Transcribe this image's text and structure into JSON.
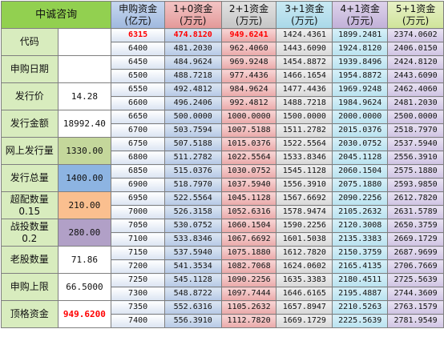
{
  "header": {
    "title": "中诚咨询",
    "col0": "申购资金\n(亿元)",
    "col1": "1+0资金\n(万元)",
    "col2": "2+1资金\n(万元)",
    "col3": "3+1资金\n(万元)",
    "col4": "4+1资金\n(万元)",
    "col5": "5+1资金\n(万元)"
  },
  "labels": [
    {
      "name": "代码",
      "value": ""
    },
    {
      "name": "申购日期",
      "value": ""
    },
    {
      "name": "发行价",
      "value": "14.28"
    },
    {
      "name": "发行金额",
      "value": "18992.40"
    },
    {
      "name": "网上发行量",
      "value": "1330.00"
    },
    {
      "name": "发行总量",
      "value": "1400.00"
    },
    {
      "name": "超配数量\n0.15",
      "value": "210.00"
    },
    {
      "name": "战投数量\n0.2",
      "value": "280.00"
    },
    {
      "name": "老股数量",
      "value": "71.86"
    },
    {
      "name": "申购上限",
      "value": "66.5000"
    },
    {
      "name": "顶格资金",
      "value": "949.6200"
    }
  ],
  "rows": [
    [
      "6315",
      "474.8120",
      "949.6241",
      "1424.4361",
      "1899.2481",
      "2374.0602"
    ],
    [
      "6400",
      "481.2030",
      "962.4060",
      "1443.6090",
      "1924.8120",
      "2406.0150"
    ],
    [
      "6450",
      "484.9624",
      "969.9248",
      "1454.8872",
      "1939.8496",
      "2424.8120"
    ],
    [
      "6500",
      "488.7218",
      "977.4436",
      "1466.1654",
      "1954.8872",
      "2443.6090"
    ],
    [
      "6550",
      "492.4812",
      "984.9624",
      "1477.4436",
      "1969.9248",
      "2462.4060"
    ],
    [
      "6600",
      "496.2406",
      "992.4812",
      "1488.7218",
      "1984.9624",
      "2481.2030"
    ],
    [
      "6650",
      "500.0000",
      "1000.0000",
      "1500.0000",
      "2000.0000",
      "2500.0000"
    ],
    [
      "6700",
      "503.7594",
      "1007.5188",
      "1511.2782",
      "2015.0376",
      "2518.7970"
    ],
    [
      "6750",
      "507.5188",
      "1015.0376",
      "1522.5564",
      "2030.0752",
      "2537.5940"
    ],
    [
      "6800",
      "511.2782",
      "1022.5564",
      "1533.8346",
      "2045.1128",
      "2556.3910"
    ],
    [
      "6850",
      "515.0376",
      "1030.0752",
      "1545.1128",
      "2060.1504",
      "2575.1880"
    ],
    [
      "6900",
      "518.7970",
      "1037.5940",
      "1556.3910",
      "2075.1880",
      "2593.9850"
    ],
    [
      "6950",
      "522.5564",
      "1045.1128",
      "1567.6692",
      "2090.2256",
      "2612.7820"
    ],
    [
      "7000",
      "526.3158",
      "1052.6316",
      "1578.9474",
      "2105.2632",
      "2631.5789"
    ],
    [
      "7050",
      "530.0752",
      "1060.1504",
      "1590.2256",
      "2120.3008",
      "2650.3759"
    ],
    [
      "7100",
      "533.8346",
      "1067.6692",
      "1601.5038",
      "2135.3383",
      "2669.1729"
    ],
    [
      "7150",
      "537.5940",
      "1075.1880",
      "1612.7820",
      "2150.3759",
      "2687.9699"
    ],
    [
      "7200",
      "541.3534",
      "1082.7068",
      "1624.0602",
      "2165.4135",
      "2706.7669"
    ],
    [
      "7250",
      "545.1128",
      "1090.2256",
      "1635.3383",
      "2180.4511",
      "2725.5639"
    ],
    [
      "7300",
      "548.8722",
      "1097.7444",
      "1646.6165",
      "2195.4887",
      "2744.3609"
    ],
    [
      "7350",
      "552.6316",
      "1105.2632",
      "1657.8947",
      "2210.5263",
      "2763.1579"
    ],
    [
      "7400",
      "556.3910",
      "1112.7820",
      "1669.1729",
      "2225.5639",
      "2781.9549"
    ]
  ]
}
